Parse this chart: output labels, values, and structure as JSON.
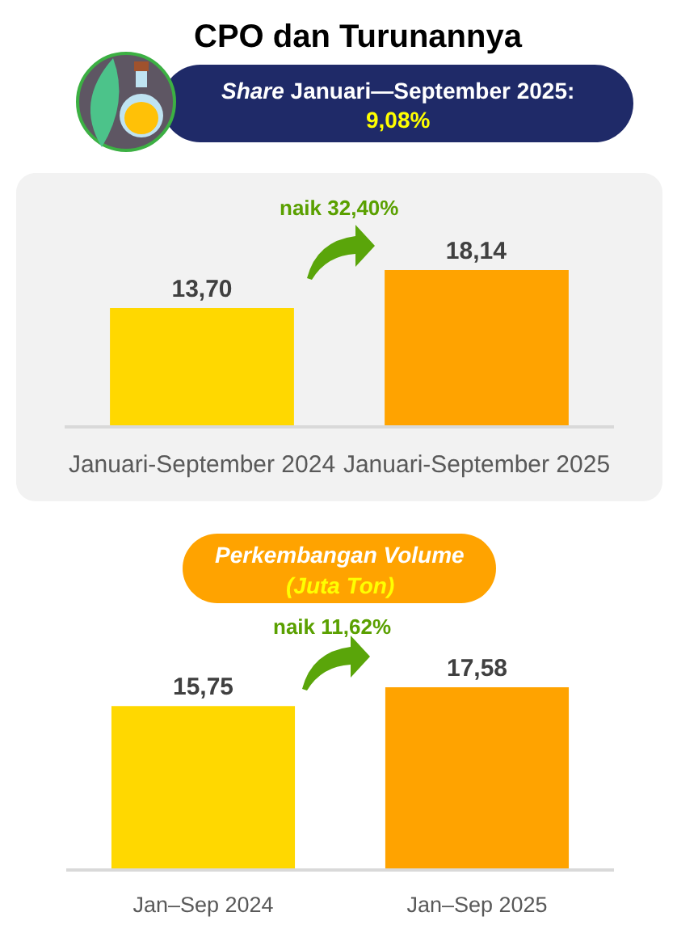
{
  "chart_data": [
    {
      "type": "bar",
      "title": "CPO dan Turunannya",
      "subtitle": "Share Januari—September 2025:\n9,08%",
      "categories": [
        "Januari-September 2024",
        "Januari-September 2025"
      ],
      "values": [
        13.7,
        18.14
      ],
      "colors": [
        "#ffd800",
        "#ffa300"
      ],
      "value_labels": [
        "13,70",
        "18,14"
      ],
      "annotations": [
        "naik 32,40%"
      ]
    },
    {
      "type": "bar",
      "title": "Perkembangan Volume",
      "subtitle": "(Juta Ton)",
      "categories": [
        "Jan–Sep 2024",
        "Jan–Sep 2025"
      ],
      "values": [
        15.75,
        17.58
      ],
      "colors": [
        "#ffd800",
        "#ffa300"
      ],
      "value_labels": [
        "15,75",
        "17,58"
      ],
      "annotations": [
        "naik 11,62%"
      ]
    }
  ]
}
